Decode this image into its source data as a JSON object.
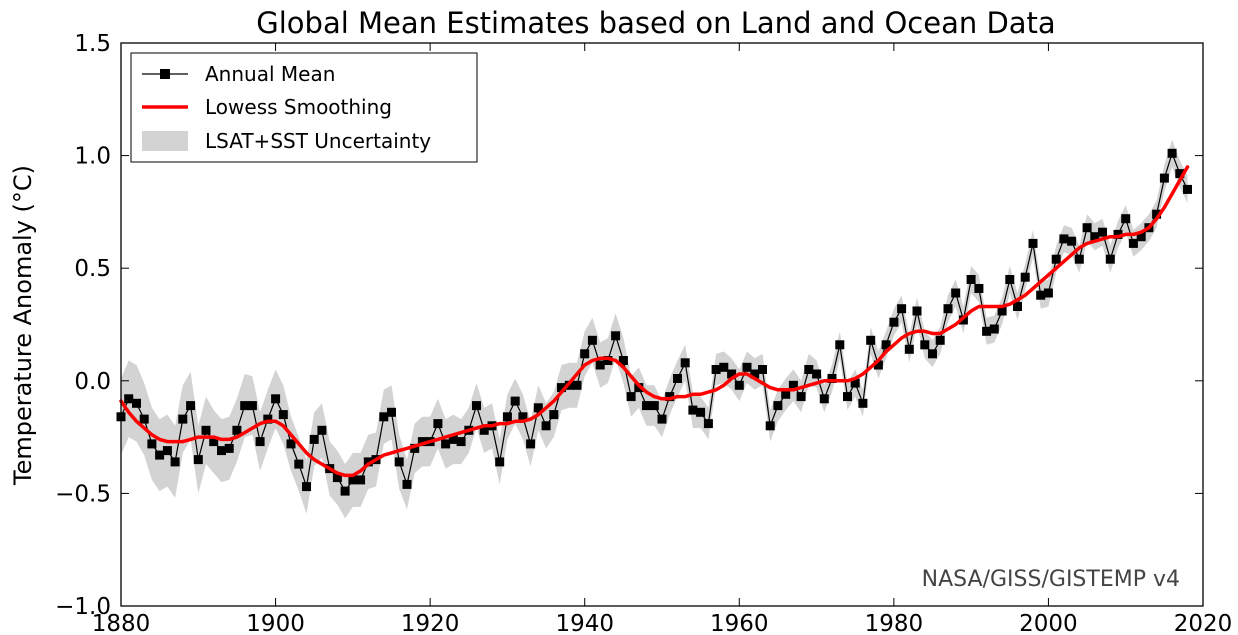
{
  "chart_data": {
    "type": "line",
    "title": "Global Mean Estimates based on Land and Ocean Data",
    "xlabel": "",
    "ylabel": "Temperature Anomaly (°C)",
    "xlim": [
      1880,
      2020
    ],
    "ylim": [
      -1.0,
      1.5
    ],
    "x_ticks": [
      1880,
      1900,
      1920,
      1940,
      1960,
      1980,
      2000,
      2020
    ],
    "y_ticks": [
      -1.0,
      -0.5,
      0.0,
      0.5,
      1.0,
      1.5
    ],
    "x_tick_labels": [
      "1880",
      "1900",
      "1920",
      "1940",
      "1960",
      "1980",
      "2000",
      "2020"
    ],
    "y_tick_labels": [
      "−1.0",
      "−0.5",
      "0.0",
      "0.5",
      "1.0",
      "1.5"
    ],
    "grid": false,
    "legend_position": "top-left",
    "watermark": "NASA/GISS/GISTEMP v4",
    "x": [
      1880,
      1881,
      1882,
      1883,
      1884,
      1885,
      1886,
      1887,
      1888,
      1889,
      1890,
      1891,
      1892,
      1893,
      1894,
      1895,
      1896,
      1897,
      1898,
      1899,
      1900,
      1901,
      1902,
      1903,
      1904,
      1905,
      1906,
      1907,
      1908,
      1909,
      1910,
      1911,
      1912,
      1913,
      1914,
      1915,
      1916,
      1917,
      1918,
      1919,
      1920,
      1921,
      1922,
      1923,
      1924,
      1925,
      1926,
      1927,
      1928,
      1929,
      1930,
      1931,
      1932,
      1933,
      1934,
      1935,
      1936,
      1937,
      1938,
      1939,
      1940,
      1941,
      1942,
      1943,
      1944,
      1945,
      1946,
      1947,
      1948,
      1949,
      1950,
      1951,
      1952,
      1953,
      1954,
      1955,
      1956,
      1957,
      1958,
      1959,
      1960,
      1961,
      1962,
      1963,
      1964,
      1965,
      1966,
      1967,
      1968,
      1969,
      1970,
      1971,
      1972,
      1973,
      1974,
      1975,
      1976,
      1977,
      1978,
      1979,
      1980,
      1981,
      1982,
      1983,
      1984,
      1985,
      1986,
      1987,
      1988,
      1989,
      1990,
      1991,
      1992,
      1993,
      1994,
      1995,
      1996,
      1997,
      1998,
      1999,
      2000,
      2001,
      2002,
      2003,
      2004,
      2005,
      2006,
      2007,
      2008,
      2009,
      2010,
      2011,
      2012,
      2013,
      2014,
      2015,
      2016,
      2017,
      2018
    ],
    "series": [
      {
        "name": "Annual Mean",
        "color": "#000000",
        "marker": "square",
        "values": [
          -0.16,
          -0.08,
          -0.1,
          -0.17,
          -0.28,
          -0.33,
          -0.31,
          -0.36,
          -0.17,
          -0.11,
          -0.35,
          -0.22,
          -0.27,
          -0.31,
          -0.3,
          -0.22,
          -0.11,
          -0.11,
          -0.27,
          -0.17,
          -0.08,
          -0.15,
          -0.28,
          -0.37,
          -0.47,
          -0.26,
          -0.22,
          -0.39,
          -0.43,
          -0.49,
          -0.44,
          -0.44,
          -0.36,
          -0.35,
          -0.16,
          -0.14,
          -0.36,
          -0.46,
          -0.3,
          -0.27,
          -0.27,
          -0.19,
          -0.28,
          -0.26,
          -0.27,
          -0.22,
          -0.11,
          -0.22,
          -0.2,
          -0.36,
          -0.16,
          -0.09,
          -0.16,
          -0.28,
          -0.12,
          -0.2,
          -0.15,
          -0.03,
          -0.02,
          -0.02,
          0.12,
          0.18,
          0.07,
          0.09,
          0.2,
          0.09,
          -0.07,
          -0.03,
          -0.11,
          -0.11,
          -0.17,
          -0.07,
          0.01,
          0.08,
          -0.13,
          -0.14,
          -0.19,
          0.05,
          0.06,
          0.03,
          -0.02,
          0.06,
          0.03,
          0.05,
          -0.2,
          -0.11,
          -0.06,
          -0.02,
          -0.07,
          0.05,
          0.03,
          -0.08,
          0.01,
          0.16,
          -0.07,
          -0.01,
          -0.1,
          0.18,
          0.07,
          0.16,
          0.26,
          0.32,
          0.14,
          0.31,
          0.16,
          0.12,
          0.18,
          0.32,
          0.39,
          0.27,
          0.45,
          0.41,
          0.22,
          0.23,
          0.31,
          0.45,
          0.33,
          0.46,
          0.61,
          0.38,
          0.39,
          0.54,
          0.63,
          0.62,
          0.54,
          0.68,
          0.64,
          0.66,
          0.54,
          0.65,
          0.72,
          0.61,
          0.64,
          0.68,
          0.74,
          0.9,
          1.01,
          0.92,
          0.85
        ]
      },
      {
        "name": "Lowess Smoothing",
        "color": "#ff0000",
        "values": [
          -0.09,
          -0.14,
          -0.18,
          -0.21,
          -0.24,
          -0.26,
          -0.27,
          -0.27,
          -0.27,
          -0.26,
          -0.25,
          -0.25,
          -0.25,
          -0.26,
          -0.26,
          -0.25,
          -0.23,
          -0.21,
          -0.19,
          -0.18,
          -0.18,
          -0.2,
          -0.24,
          -0.28,
          -0.32,
          -0.35,
          -0.37,
          -0.39,
          -0.41,
          -0.42,
          -0.42,
          -0.4,
          -0.37,
          -0.35,
          -0.33,
          -0.32,
          -0.31,
          -0.3,
          -0.29,
          -0.28,
          -0.27,
          -0.26,
          -0.25,
          -0.24,
          -0.23,
          -0.22,
          -0.21,
          -0.2,
          -0.2,
          -0.19,
          -0.19,
          -0.18,
          -0.18,
          -0.17,
          -0.15,
          -0.12,
          -0.09,
          -0.05,
          -0.01,
          0.03,
          0.07,
          0.09,
          0.1,
          0.1,
          0.09,
          0.06,
          0.02,
          -0.02,
          -0.05,
          -0.07,
          -0.08,
          -0.08,
          -0.07,
          -0.07,
          -0.06,
          -0.06,
          -0.05,
          -0.04,
          -0.02,
          0.01,
          0.03,
          0.03,
          0.01,
          -0.01,
          -0.03,
          -0.04,
          -0.04,
          -0.04,
          -0.03,
          -0.02,
          -0.01,
          0.0,
          0.0,
          0.0,
          0.0,
          0.01,
          0.03,
          0.06,
          0.09,
          0.13,
          0.16,
          0.19,
          0.21,
          0.22,
          0.22,
          0.21,
          0.21,
          0.23,
          0.25,
          0.28,
          0.31,
          0.33,
          0.33,
          0.33,
          0.33,
          0.34,
          0.36,
          0.38,
          0.41,
          0.44,
          0.47,
          0.5,
          0.53,
          0.56,
          0.59,
          0.61,
          0.62,
          0.63,
          0.64,
          0.64,
          0.65,
          0.65,
          0.66,
          0.68,
          0.72,
          0.77,
          0.83,
          0.89,
          0.95
        ]
      }
    ],
    "uncertainty": {
      "name": "LSAT+SST Uncertainty",
      "color": "#d3d3d3",
      "half_width": [
        0.17,
        0.17,
        0.17,
        0.16,
        0.16,
        0.16,
        0.16,
        0.16,
        0.15,
        0.15,
        0.15,
        0.15,
        0.14,
        0.14,
        0.14,
        0.14,
        0.14,
        0.13,
        0.13,
        0.13,
        0.13,
        0.13,
        0.12,
        0.12,
        0.12,
        0.12,
        0.12,
        0.12,
        0.12,
        0.12,
        0.12,
        0.12,
        0.12,
        0.12,
        0.12,
        0.12,
        0.12,
        0.11,
        0.11,
        0.11,
        0.11,
        0.11,
        0.11,
        0.11,
        0.1,
        0.1,
        0.1,
        0.1,
        0.1,
        0.1,
        0.1,
        0.1,
        0.1,
        0.1,
        0.1,
        0.1,
        0.1,
        0.1,
        0.1,
        0.1,
        0.1,
        0.1,
        0.1,
        0.1,
        0.1,
        0.1,
        0.09,
        0.09,
        0.09,
        0.09,
        0.08,
        0.08,
        0.08,
        0.08,
        0.08,
        0.07,
        0.07,
        0.07,
        0.07,
        0.07,
        0.07,
        0.07,
        0.07,
        0.07,
        0.07,
        0.07,
        0.07,
        0.07,
        0.07,
        0.07,
        0.06,
        0.06,
        0.06,
        0.06,
        0.06,
        0.06,
        0.06,
        0.06,
        0.06,
        0.06,
        0.06,
        0.06,
        0.06,
        0.06,
        0.06,
        0.06,
        0.06,
        0.06,
        0.06,
        0.06,
        0.06,
        0.06,
        0.06,
        0.06,
        0.06,
        0.06,
        0.06,
        0.06,
        0.06,
        0.06,
        0.06,
        0.06,
        0.06,
        0.06,
        0.06,
        0.06,
        0.06,
        0.06,
        0.06,
        0.06,
        0.06,
        0.06,
        0.06,
        0.06,
        0.06,
        0.06,
        0.06,
        0.06,
        0.06
      ]
    }
  }
}
